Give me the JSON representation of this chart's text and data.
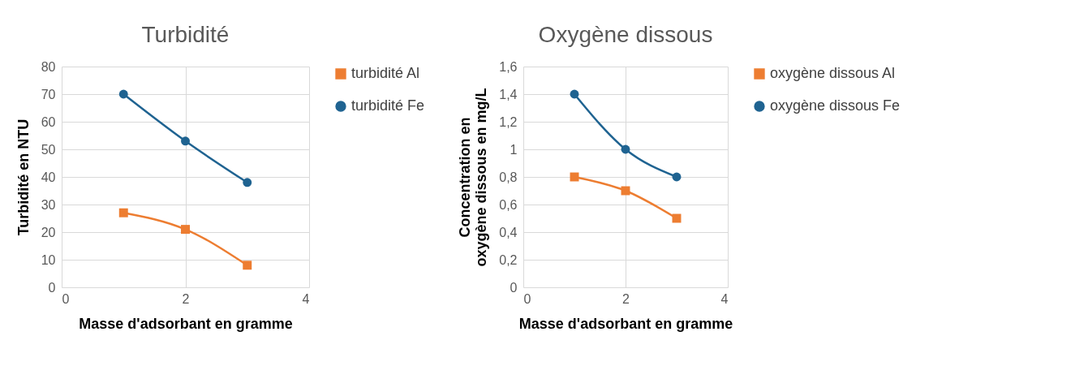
{
  "chart_data": [
    {
      "type": "line",
      "title": "Turbidité",
      "xlabel": "Masse d'adsorbant en gramme",
      "ylabel": "Turbidité en NTU",
      "x": [
        1,
        2,
        3
      ],
      "xlim": [
        0,
        4
      ],
      "xticks": [
        0,
        2,
        4
      ],
      "ylim": [
        0,
        80
      ],
      "yticks": [
        0,
        10,
        20,
        30,
        40,
        50,
        60,
        70,
        80
      ],
      "grid": true,
      "legend": "right",
      "series": [
        {
          "name": "turbidité Al",
          "color": "#ed7d31",
          "marker": "square",
          "values": [
            27,
            21,
            8
          ]
        },
        {
          "name": "turbidité Fe",
          "color": "#1f6391",
          "marker": "circle",
          "values": [
            70,
            53,
            38
          ]
        }
      ]
    },
    {
      "type": "line",
      "title": "Oxygène dissous",
      "xlabel": "Masse d'adsorbant en gramme",
      "ylabel": "Concentration en oxygène dissous en mg/L",
      "x": [
        1,
        2,
        3
      ],
      "xlim": [
        0,
        4
      ],
      "xticks": [
        0,
        2,
        4
      ],
      "ylim": [
        0,
        1.6
      ],
      "yticks": [
        0,
        {
          "value": 0.2,
          "label": "0,2"
        },
        {
          "value": 0.4,
          "label": "0,4"
        },
        {
          "value": 0.6,
          "label": "0,6"
        },
        {
          "value": 0.8,
          "label": "0,8"
        },
        1,
        {
          "value": 1.2,
          "label": "1,2"
        },
        {
          "value": 1.4,
          "label": "1,4"
        },
        {
          "value": 1.6,
          "label": "1,6"
        }
      ],
      "grid": true,
      "legend": "right",
      "series": [
        {
          "name": "oxygène dissous Al",
          "color": "#ed7d31",
          "marker": "square",
          "values": [
            0.8,
            0.7,
            0.5
          ]
        },
        {
          "name": "oxygène dissous Fe",
          "color": "#1f6391",
          "marker": "circle",
          "values": [
            1.4,
            1.0,
            0.8
          ]
        }
      ]
    }
  ]
}
